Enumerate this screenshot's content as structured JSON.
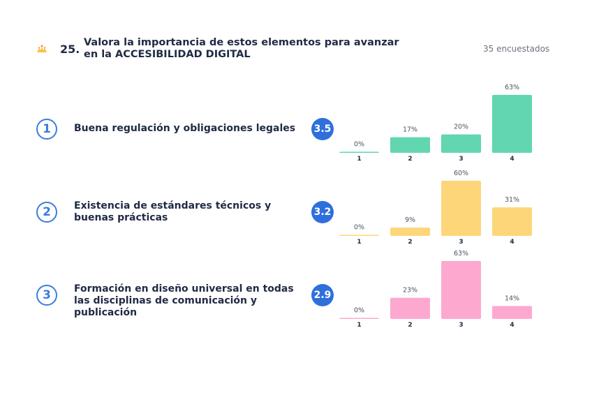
{
  "question": {
    "number": "25.",
    "title": "Valora la importancia de estos elementos para avanzar en la ACCESIBILIDAD DIGITAL",
    "respondents": "35 encuestados",
    "icon": "hands-icon"
  },
  "colors": {
    "accent": "#2f6fdc",
    "ring": "#3b7ddd",
    "text": "#1f2a44"
  },
  "items": [
    {
      "index": "1",
      "label": "Buena regulación y obligaciones legales",
      "average": "3.5",
      "color": "#61d6b0"
    },
    {
      "index": "2",
      "label": "Existencia de estándares técnicos y buenas prácticas",
      "average": "3.2",
      "color": "#fdd67a"
    },
    {
      "index": "3",
      "label": "Formación en diseño universal en todas las disciplinas de comunicación y publicación",
      "average": "2.9",
      "color": "#fda9cf"
    }
  ],
  "chart_data": [
    {
      "type": "bar",
      "title": "Buena regulación y obligaciones legales",
      "categories": [
        "1",
        "2",
        "3",
        "4"
      ],
      "values": [
        0,
        17,
        20,
        63
      ],
      "value_labels": [
        "0%",
        "17%",
        "20%",
        "63%"
      ],
      "ylim": [
        0,
        63
      ],
      "color": "#61d6b0"
    },
    {
      "type": "bar",
      "title": "Existencia de estándares técnicos y buenas prácticas",
      "categories": [
        "1",
        "2",
        "3",
        "4"
      ],
      "values": [
        0,
        9,
        60,
        31
      ],
      "value_labels": [
        "0%",
        "9%",
        "60%",
        "31%"
      ],
      "ylim": [
        0,
        63
      ],
      "color": "#fdd67a"
    },
    {
      "type": "bar",
      "title": "Formación en diseño universal en todas las disciplinas de comunicación y publicación",
      "categories": [
        "1",
        "2",
        "3",
        "4"
      ],
      "values": [
        0,
        23,
        63,
        14
      ],
      "value_labels": [
        "0%",
        "23%",
        "63%",
        "14%"
      ],
      "ylim": [
        0,
        63
      ],
      "color": "#fda9cf"
    }
  ]
}
